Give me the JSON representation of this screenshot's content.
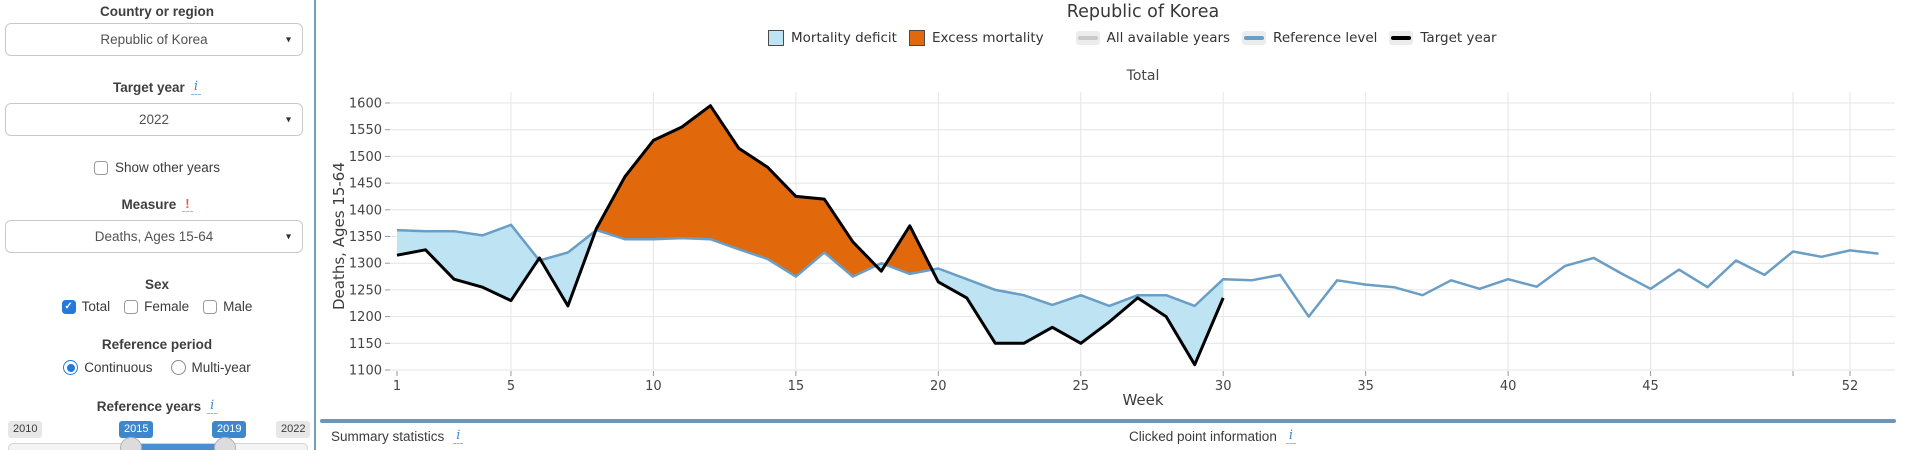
{
  "icons": {
    "chevron_down": "▾",
    "check": "✓",
    "info": "i",
    "warning": "!"
  },
  "sidebar": {
    "country": {
      "label": "Country or region",
      "value": "Republic of Korea"
    },
    "target_year": {
      "label": "Target year",
      "value": "2022"
    },
    "show_other_years": {
      "label": "Show other years",
      "checked": false
    },
    "measure": {
      "label": "Measure",
      "value": "Deaths, Ages 15-64"
    },
    "sex": {
      "label": "Sex",
      "options": [
        {
          "label": "Total",
          "checked": true
        },
        {
          "label": "Female",
          "checked": false
        },
        {
          "label": "Male",
          "checked": false
        }
      ]
    },
    "reference_period": {
      "label": "Reference period",
      "options": [
        {
          "label": "Continuous",
          "selected": true
        },
        {
          "label": "Multi-year",
          "selected": false
        }
      ]
    },
    "reference_years": {
      "label": "Reference years",
      "range_min": "2010",
      "range_max": "2022",
      "selected_from": "2015",
      "selected_to": "2019"
    }
  },
  "footer": {
    "summary_label": "Summary statistics",
    "clicked_label": "Clicked point information"
  },
  "colors": {
    "accent_blue": "#2479DD",
    "slider_blue": "#4A8FD1",
    "badge_blue": "#3F87CB",
    "separator": "#6E96B4",
    "sidebar_border": "#6BA3BD",
    "info_blue": "#4189C7",
    "warning_red": "#E2604C"
  },
  "chart_data": {
    "type": "area",
    "title": "Republic of Korea",
    "subtitle": "Total",
    "xlabel": "Week",
    "ylabel": "Deaths, Ages 15-64",
    "xlim": [
      1,
      53.6
    ],
    "ylim": [
      1100,
      1600
    ],
    "grid": true,
    "yticks": [
      1100,
      1150,
      1200,
      1250,
      1300,
      1350,
      1400,
      1450,
      1500,
      1550,
      1600
    ],
    "xticks_labeled": [
      1,
      5,
      10,
      15,
      20,
      25,
      30,
      35,
      40,
      45,
      52
    ],
    "xticks_unlabeled": [
      50
    ],
    "x_gridlines": [
      5,
      10,
      15,
      20,
      25,
      30,
      35,
      40,
      45,
      50,
      52
    ],
    "legend": {
      "position": "top",
      "items": [
        {
          "label": "Mortality deficit",
          "swatch": "square",
          "color": "#BEE4F4"
        },
        {
          "label": "Excess mortality",
          "swatch": "square",
          "color": "#E2690B"
        },
        {
          "label": "All available years",
          "swatch": "line",
          "color": "#C9C9C9"
        },
        {
          "label": "Reference level",
          "swatch": "line",
          "color": "#6A9EC5"
        },
        {
          "label": "Target year",
          "swatch": "line",
          "color": "#000000"
        }
      ]
    },
    "series": [
      {
        "name": "Reference level",
        "color": "#6A9EC5",
        "width": 2.5,
        "x": [
          1,
          2,
          3,
          4,
          5,
          6,
          7,
          8,
          9,
          10,
          11,
          12,
          13,
          14,
          15,
          16,
          17,
          18,
          19,
          20,
          21,
          22,
          23,
          24,
          25,
          26,
          27,
          28,
          29,
          30,
          31,
          32,
          33,
          34,
          35,
          36,
          37,
          38,
          39,
          40,
          41,
          42,
          43,
          44,
          45,
          46,
          47,
          48,
          49,
          50,
          51,
          52,
          53
        ],
        "y": [
          1362,
          1360,
          1360,
          1352,
          1372,
          1305,
          1320,
          1362,
          1345,
          1345,
          1347,
          1345,
          1326,
          1308,
          1275,
          1320,
          1275,
          1300,
          1280,
          1290,
          1270,
          1250,
          1240,
          1222,
          1240,
          1220,
          1240,
          1240,
          1220,
          1270,
          1268,
          1278,
          1200,
          1268,
          1260,
          1255,
          1240,
          1268,
          1252,
          1270,
          1256,
          1295,
          1310,
          1280,
          1252,
          1288,
          1255,
          1305,
          1278,
          1322,
          1312,
          1324,
          1318
        ]
      },
      {
        "name": "Target year",
        "color": "#000000",
        "width": 3,
        "x": [
          1,
          2,
          3,
          4,
          5,
          6,
          7,
          8,
          9,
          10,
          11,
          12,
          13,
          14,
          15,
          16,
          17,
          18,
          19,
          20,
          21,
          22,
          23,
          24,
          25,
          26,
          27,
          28,
          29,
          30
        ],
        "y": [
          1315,
          1325,
          1270,
          1255,
          1230,
          1310,
          1220,
          1365,
          1462,
          1530,
          1555,
          1595,
          1515,
          1480,
          1425,
          1420,
          1340,
          1285,
          1370,
          1265,
          1235,
          1150,
          1150,
          1180,
          1150,
          1190,
          1235,
          1200,
          1110,
          1235
        ]
      }
    ],
    "fills": {
      "deficit_label": "Mortality deficit",
      "deficit_color": "#BEE4F4",
      "excess_label": "Excess mortality",
      "excess_color": "#E2690B"
    }
  }
}
